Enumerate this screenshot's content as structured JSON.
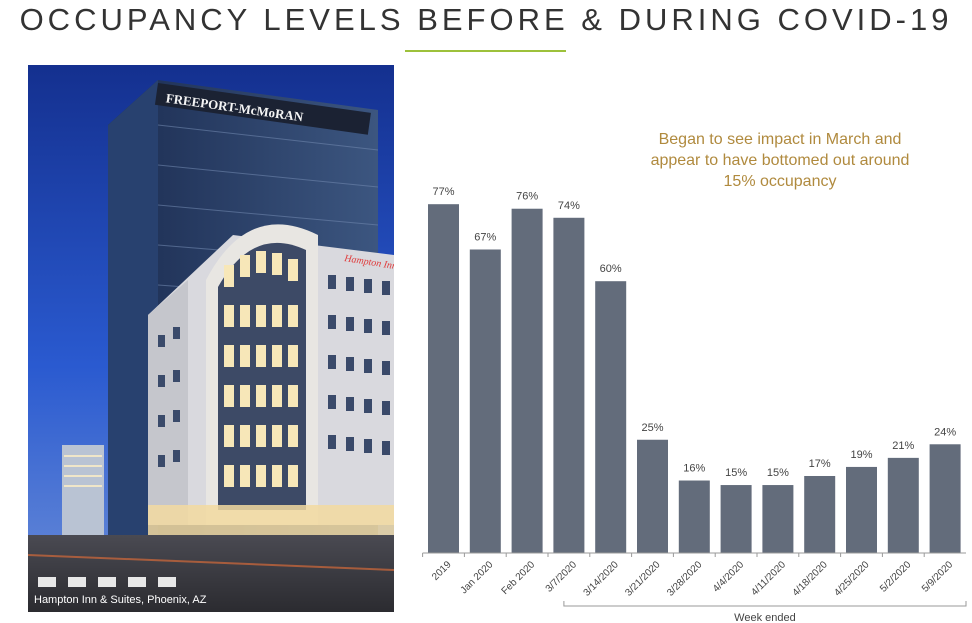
{
  "title": "OCCUPANCY LEVELS BEFORE & DURING COVID-19",
  "photo": {
    "caption": "Hampton Inn & Suites, Phoenix, AZ",
    "sign_tower": "FREEPORT-McMoRAN",
    "sign_hotel": "Hampton Inn & Suites"
  },
  "annotation": "Began to see impact in March and appear to have bottomed out around 15% occupancy",
  "chart_data": {
    "type": "bar",
    "categories": [
      "2019",
      "Jan 2020",
      "Feb 2020",
      "3/7/2020",
      "3/14/2020",
      "3/21/2020",
      "3/28/2020",
      "4/4/2020",
      "4/11/2020",
      "4/18/2020",
      "4/25/2020",
      "5/2/2020",
      "5/9/2020"
    ],
    "values": [
      77,
      67,
      76,
      74,
      60,
      25,
      16,
      15,
      15,
      17,
      19,
      21,
      24
    ],
    "value_labels": [
      "77%",
      "67%",
      "76%",
      "74%",
      "60%",
      "25%",
      "16%",
      "15%",
      "15%",
      "17%",
      "19%",
      "21%",
      "24%"
    ],
    "xlabel": "Week ended",
    "bracket_from_index": 3,
    "ylim": [
      0,
      100
    ],
    "color": "#636c7b",
    "accent": "#9dc13b"
  }
}
